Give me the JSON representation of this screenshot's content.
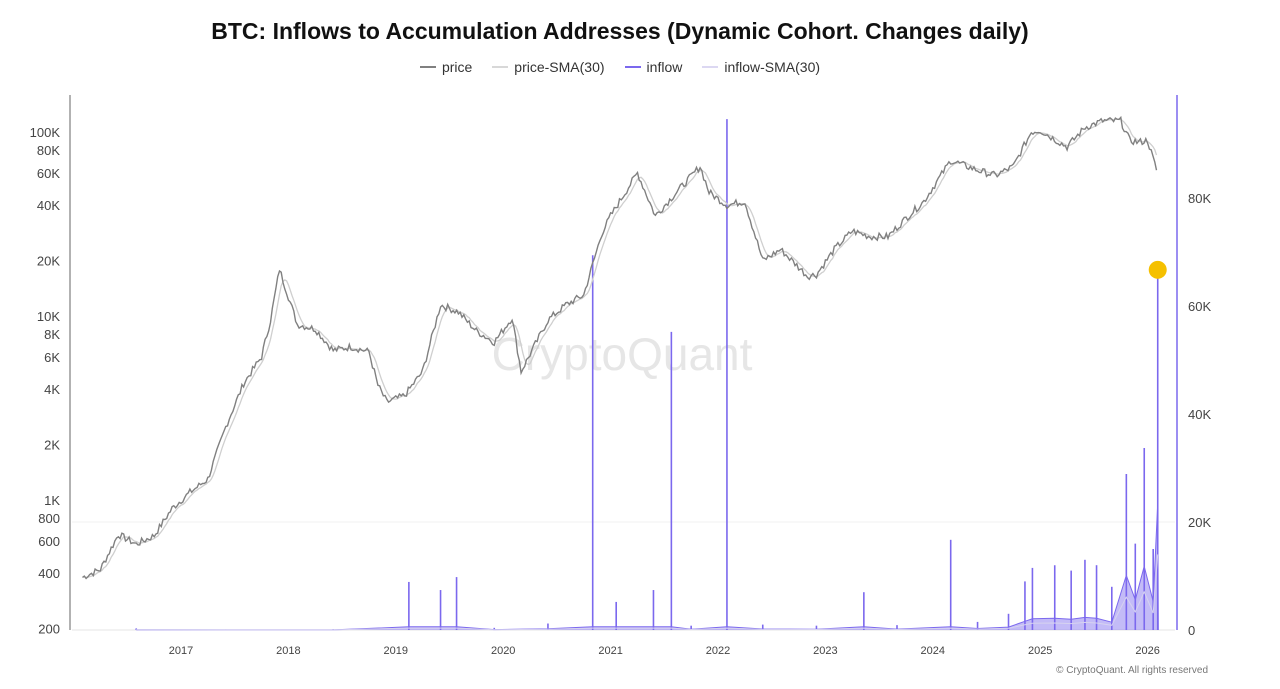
{
  "chart_data": {
    "type": "line",
    "title": "BTC: Inflows to Accumulation Addresses (Dynamic Cohort. Changes daily)",
    "legend": {
      "placement": "top",
      "entries": [
        "price",
        "price-SMA(30)",
        "inflow",
        "inflow-SMA(30)"
      ]
    },
    "colors": {
      "price": "#808080",
      "price_sma": "#cfcfcf",
      "inflow": "#7b68ee",
      "inflow_sma": "#d6d2f0",
      "highlight": "#f5c000",
      "right_axis": "#7b68ee"
    },
    "x_ticks": [
      "2017",
      "2018",
      "2019",
      "2020",
      "2021",
      "2022",
      "2023",
      "2024",
      "2025",
      "2026"
    ],
    "xlim": [
      "2016-01",
      "2026-04"
    ],
    "left_axis": {
      "scale": "log",
      "ylim": [
        200,
        130000
      ],
      "ticks": [
        {
          "v": 200,
          "label": "200"
        },
        {
          "v": 400,
          "label": "400"
        },
        {
          "v": 600,
          "label": "600"
        },
        {
          "v": 800,
          "label": "800"
        },
        {
          "v": 1000,
          "label": "1K"
        },
        {
          "v": 2000,
          "label": "2K"
        },
        {
          "v": 4000,
          "label": "4K"
        },
        {
          "v": 6000,
          "label": "6K"
        },
        {
          "v": 8000,
          "label": "8K"
        },
        {
          "v": 10000,
          "label": "10K"
        },
        {
          "v": 20000,
          "label": "20K"
        },
        {
          "v": 40000,
          "label": "40K"
        },
        {
          "v": 60000,
          "label": "60K"
        },
        {
          "v": 80000,
          "label": "80K"
        },
        {
          "v": 100000,
          "label": "100K"
        }
      ]
    },
    "right_axis": {
      "scale": "linear",
      "ylim": [
        0,
        98000
      ],
      "ticks": [
        {
          "v": 0,
          "label": "0"
        },
        {
          "v": 20000,
          "label": "20K"
        },
        {
          "v": 40000,
          "label": "40K"
        },
        {
          "v": 60000,
          "label": "60K"
        },
        {
          "v": 80000,
          "label": "80K"
        }
      ]
    },
    "price": [
      [
        "2016-02",
        380
      ],
      [
        "2016-04",
        420
      ],
      [
        "2016-06",
        650
      ],
      [
        "2016-08",
        575
      ],
      [
        "2016-10",
        640
      ],
      [
        "2016-12",
        900
      ],
      [
        "2017-02",
        1100
      ],
      [
        "2017-04",
        1300
      ],
      [
        "2017-06",
        2500
      ],
      [
        "2017-08",
        4300
      ],
      [
        "2017-10",
        6000
      ],
      [
        "2017-11",
        9500
      ],
      [
        "2017-12",
        18000
      ],
      [
        "2018-02",
        9000
      ],
      [
        "2018-04",
        8500
      ],
      [
        "2018-06",
        6500
      ],
      [
        "2018-08",
        6800
      ],
      [
        "2018-10",
        6400
      ],
      [
        "2018-11",
        4200
      ],
      [
        "2018-12",
        3400
      ],
      [
        "2019-02",
        3700
      ],
      [
        "2019-04",
        5000
      ],
      [
        "2019-06",
        11500
      ],
      [
        "2019-08",
        10500
      ],
      [
        "2019-10",
        8300
      ],
      [
        "2019-12",
        7200
      ],
      [
        "2020-02",
        9800
      ],
      [
        "2020-03",
        5000
      ],
      [
        "2020-06",
        9500
      ],
      [
        "2020-08",
        11500
      ],
      [
        "2020-10",
        13000
      ],
      [
        "2020-12",
        28000
      ],
      [
        "2021-01",
        35000
      ],
      [
        "2021-04",
        60000
      ],
      [
        "2021-06",
        35000
      ],
      [
        "2021-08",
        45000
      ],
      [
        "2021-11",
        65000
      ],
      [
        "2021-12",
        47000
      ],
      [
        "2022-02",
        40000
      ],
      [
        "2022-04",
        42000
      ],
      [
        "2022-06",
        20000
      ],
      [
        "2022-08",
        23000
      ],
      [
        "2022-11",
        16500
      ],
      [
        "2022-12",
        16800
      ],
      [
        "2023-02",
        23000
      ],
      [
        "2023-04",
        29000
      ],
      [
        "2023-06",
        27000
      ],
      [
        "2023-08",
        27000
      ],
      [
        "2023-10",
        34000
      ],
      [
        "2023-12",
        42000
      ],
      [
        "2024-03",
        70000
      ],
      [
        "2024-06",
        62000
      ],
      [
        "2024-08",
        58000
      ],
      [
        "2024-10",
        65000
      ],
      [
        "2024-12",
        100000
      ],
      [
        "2025-01",
        102000
      ],
      [
        "2025-04",
        83000
      ],
      [
        "2025-06",
        106000
      ],
      [
        "2025-08",
        115000
      ],
      [
        "2025-10",
        115000
      ],
      [
        "2025-11",
        90000
      ],
      [
        "2025-12",
        88000
      ],
      [
        "2026-01",
        90000
      ],
      [
        "2026-02",
        62000
      ]
    ],
    "inflow": [
      [
        "2016-08-01",
        300
      ],
      [
        "2017-06-01",
        100
      ],
      [
        "2018-06-01",
        150
      ],
      [
        "2019-02-15",
        8900
      ],
      [
        "2019-06-01",
        7400
      ],
      [
        "2019-07-25",
        9800
      ],
      [
        "2019-12-01",
        400
      ],
      [
        "2020-06-01",
        1200
      ],
      [
        "2020-11-01",
        69400
      ],
      [
        "2021-01-20",
        5200
      ],
      [
        "2021-05-25",
        7400
      ],
      [
        "2021-07-25",
        55200
      ],
      [
        "2021-10-01",
        800
      ],
      [
        "2022-02-01",
        94600
      ],
      [
        "2022-06-01",
        1000
      ],
      [
        "2022-12-01",
        800
      ],
      [
        "2023-05-10",
        7000
      ],
      [
        "2023-09-01",
        900
      ],
      [
        "2024-03-01",
        16700
      ],
      [
        "2024-06-01",
        1500
      ],
      [
        "2024-09-15",
        3000
      ],
      [
        "2024-11-10",
        9000
      ],
      [
        "2024-12-05",
        11500
      ],
      [
        "2025-02-20",
        12000
      ],
      [
        "2025-04-15",
        11000
      ],
      [
        "2025-06-01",
        13000
      ],
      [
        "2025-07-10",
        12000
      ],
      [
        "2025-09-01",
        8000
      ],
      [
        "2025-10-20",
        28900
      ],
      [
        "2025-11-20",
        16000
      ],
      [
        "2025-12-20",
        33700
      ],
      [
        "2026-01-20",
        15000
      ],
      [
        "2026-02-05",
        66700
      ]
    ],
    "highlight_point": [
      "2026-02-05",
      66700
    ]
  },
  "watermark": "CryptoQuant",
  "footer": "© CryptoQuant. All rights reserved"
}
